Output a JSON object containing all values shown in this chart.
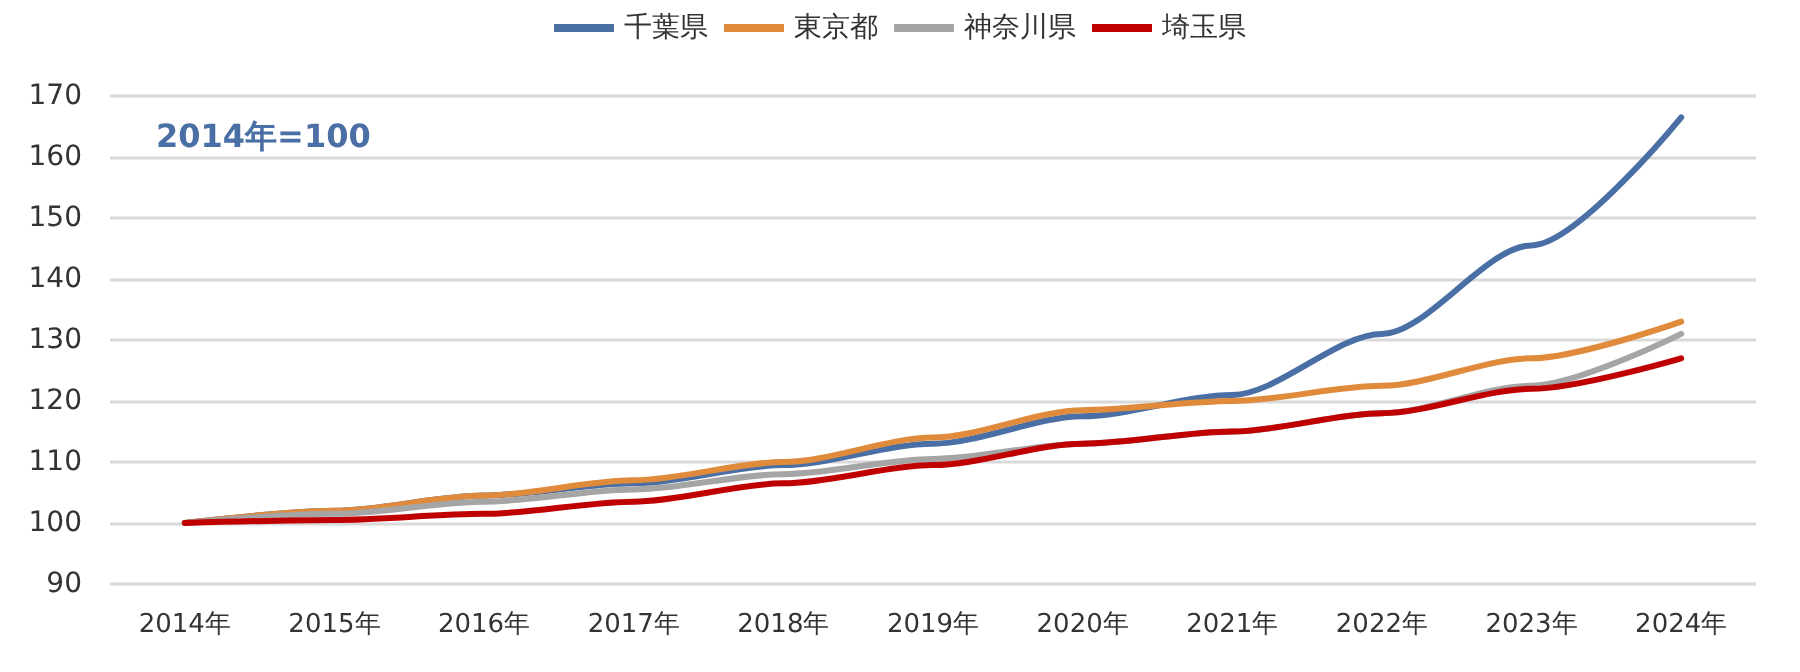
{
  "chart_data": {
    "type": "line",
    "categories": [
      "2014年",
      "2015年",
      "2016年",
      "2017年",
      "2018年",
      "2019年",
      "2020年",
      "2021年",
      "2022年",
      "2023年",
      "2024年"
    ],
    "series": [
      {
        "name": "千葉県",
        "color": "#4a6fa5",
        "values": [
          100,
          102,
          104.5,
          106.5,
          109.5,
          113,
          117.5,
          121,
          131,
          145.5,
          166.5
        ]
      },
      {
        "name": "東京都",
        "color": "#e08a3c",
        "values": [
          100,
          102,
          104.5,
          107,
          110,
          114,
          118.5,
          120,
          122.5,
          127,
          133
        ]
      },
      {
        "name": "神奈川県",
        "color": "#a5a5a5",
        "values": [
          100,
          101.5,
          103.5,
          105.5,
          108,
          110.5,
          113,
          115,
          118,
          122.5,
          131
        ]
      },
      {
        "name": "埼玉県",
        "color": "#c00000",
        "values": [
          100,
          100.5,
          101.5,
          103.5,
          106.5,
          109.5,
          113,
          115,
          118,
          122,
          127
        ]
      }
    ],
    "ylim": [
      90,
      170
    ],
    "yticks": [
      90,
      100,
      110,
      120,
      130,
      140,
      150,
      160,
      170
    ],
    "annotations": [
      "2014年=100"
    ],
    "grid": "y",
    "legend": "top",
    "marker": "none",
    "line_style": "solid"
  }
}
